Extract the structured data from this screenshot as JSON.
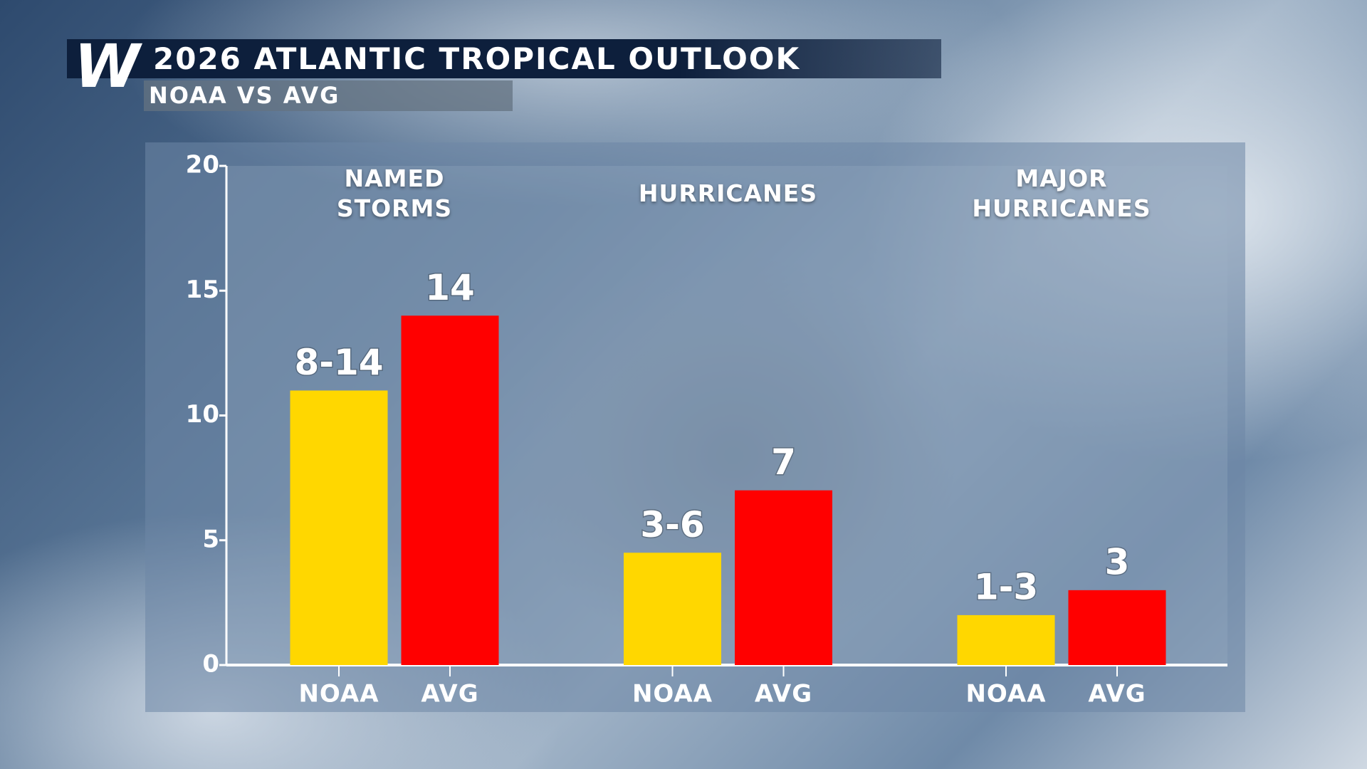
{
  "header": {
    "logo": "W",
    "title": "2026 ATLANTIC TROPICAL OUTLOOK",
    "subtitle": "NOAA VS AVG"
  },
  "chart_data": {
    "type": "bar",
    "categories": [
      "NAMED STORMS",
      "HURRICANES",
      "MAJOR HURRICANES"
    ],
    "series": [
      {
        "name": "NOAA",
        "color": "#ffd700",
        "values": [
          11,
          4.5,
          2
        ],
        "value_labels": [
          "8-14",
          "3-6",
          "1-3"
        ]
      },
      {
        "name": "AVG",
        "color": "#ff0000",
        "values": [
          14,
          7,
          3
        ],
        "value_labels": [
          "14",
          "7",
          "3"
        ]
      }
    ],
    "ylim": [
      0,
      20
    ],
    "yticks": [
      0,
      5,
      10,
      15,
      20
    ],
    "grid": false
  }
}
